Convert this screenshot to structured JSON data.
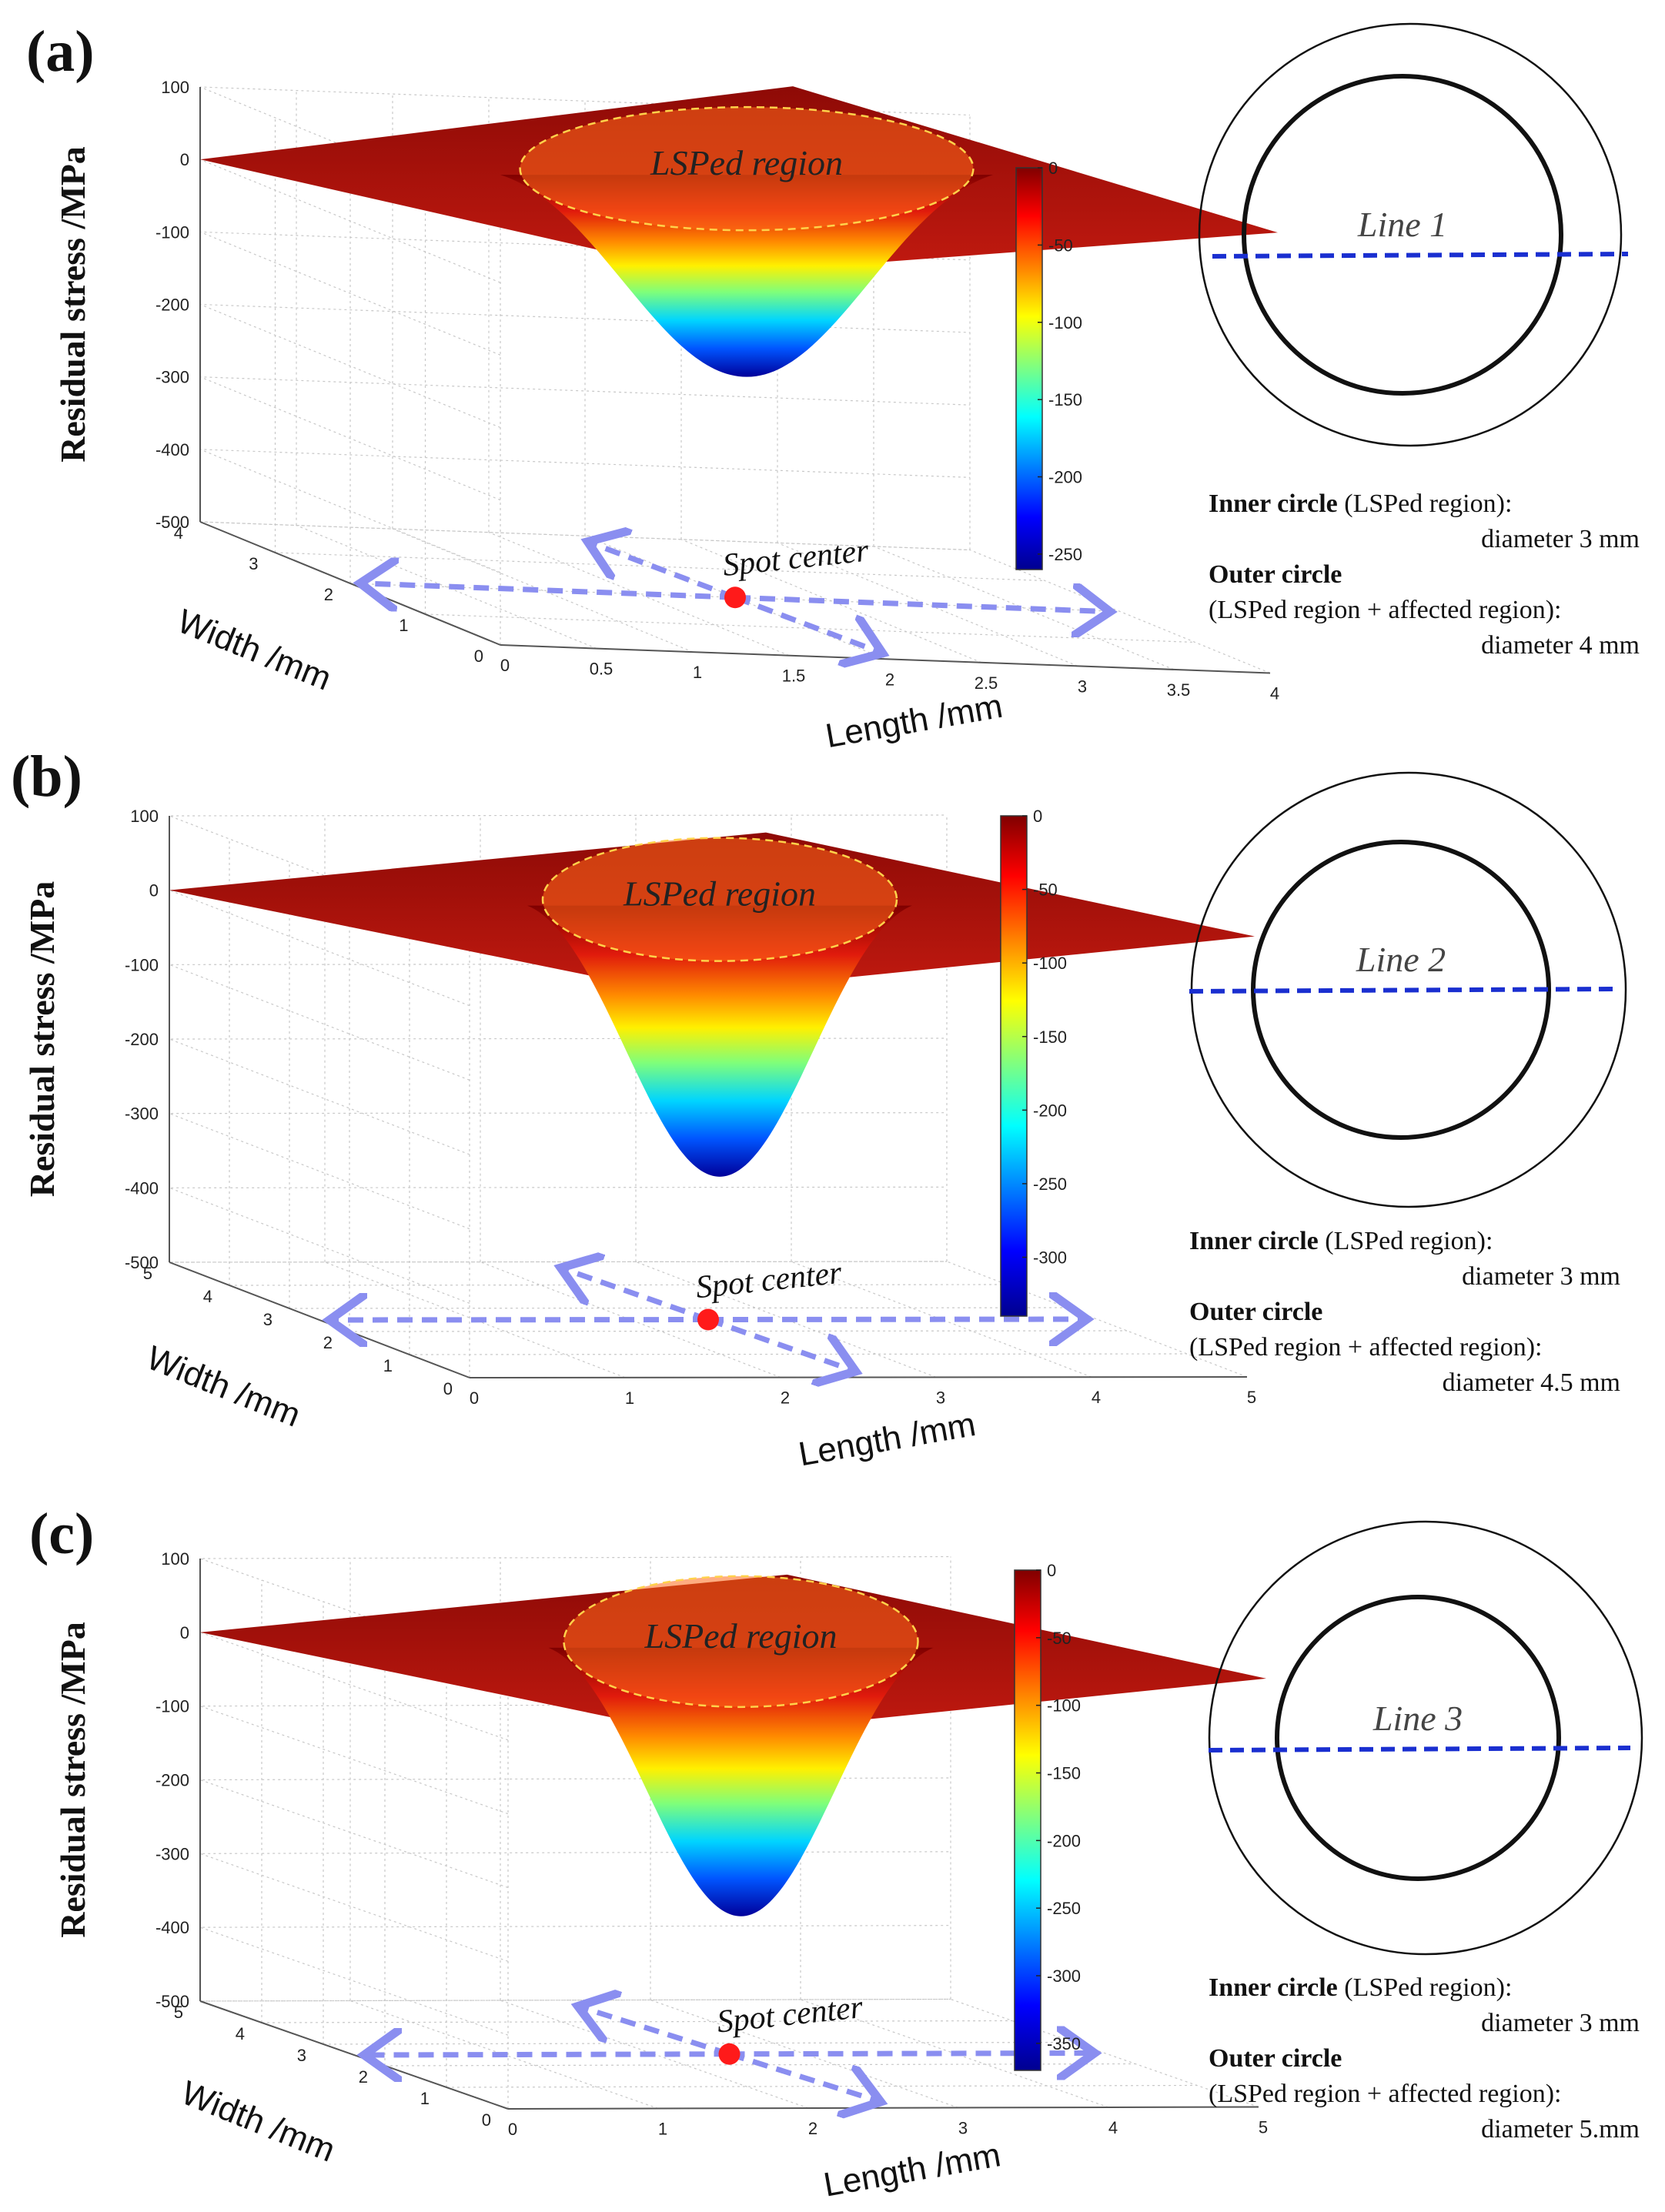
{
  "panels": [
    {
      "label": "(a)",
      "chart_data": {
        "type": "surface",
        "zlabel": "Residual stress /MPa",
        "xlabel": "Length /mm",
        "ylabel": "Width /mm",
        "x_ticks": [
          "0",
          "0.5",
          "1",
          "1.5",
          "2",
          "2.5",
          "3",
          "3.5",
          "4"
        ],
        "y_ticks": [
          "0",
          "1",
          "2",
          "3",
          "4"
        ],
        "z_ticks": [
          "100",
          "0",
          "-100",
          "-200",
          "-300",
          "-400",
          "-500"
        ],
        "xlim": [
          0,
          4
        ],
        "ylim": [
          0,
          4
        ],
        "zlim": [
          -500,
          100
        ],
        "colorbar_ticks": [
          "0",
          "-50",
          "-100",
          "-150",
          "-200",
          "-250"
        ],
        "colorbar_range": [
          -260,
          0
        ],
        "surface_min": -300,
        "region_label": "LSPed region",
        "spot_label": "Spot center"
      },
      "schematic": {
        "line_label": "Line 1"
      },
      "notes": {
        "inner_title": "Inner circle",
        "inner_desc": "(LSPed region):",
        "inner_diameter": "diameter 3 mm",
        "outer_title": "Outer circle",
        "outer_desc": "(LSPed region + affected region):",
        "outer_diameter": "diameter 4 mm"
      }
    },
    {
      "label": "(b)",
      "chart_data": {
        "type": "surface",
        "zlabel": "Residual stress /MPa",
        "xlabel": "Length /mm",
        "ylabel": "Width /mm",
        "x_ticks": [
          "0",
          "1",
          "2",
          "3",
          "4",
          "5"
        ],
        "y_ticks": [
          "0",
          "1",
          "2",
          "3",
          "4",
          "5"
        ],
        "z_ticks": [
          "100",
          "0",
          "-100",
          "-200",
          "-300",
          "-400",
          "-500"
        ],
        "xlim": [
          0,
          5
        ],
        "ylim": [
          0,
          5
        ],
        "zlim": [
          -500,
          100
        ],
        "colorbar_ticks": [
          "0",
          "-50",
          "-100",
          "-150",
          "-200",
          "-250",
          "-300"
        ],
        "colorbar_range": [
          -340,
          0
        ],
        "surface_min": -385,
        "region_label": "LSPed region",
        "spot_label": "Spot center"
      },
      "schematic": {
        "line_label": "Line 2"
      },
      "notes": {
        "inner_title": "Inner circle",
        "inner_desc": "(LSPed region):",
        "inner_diameter": "diameter 3 mm",
        "outer_title": "Outer circle",
        "outer_desc": "(LSPed region + affected region):",
        "outer_diameter": "diameter 4.5 mm"
      }
    },
    {
      "label": "(c)",
      "chart_data": {
        "type": "surface",
        "zlabel": "Residual stress /MPa",
        "xlabel": "Length /mm",
        "ylabel": "Width /mm",
        "x_ticks": [
          "0",
          "1",
          "2",
          "3",
          "4",
          "5"
        ],
        "y_ticks": [
          "0",
          "1",
          "2",
          "3",
          "4",
          "5"
        ],
        "z_ticks": [
          "100",
          "0",
          "-100",
          "-200",
          "-300",
          "-400",
          "-500"
        ],
        "xlim": [
          0,
          5
        ],
        "ylim": [
          0,
          5
        ],
        "zlim": [
          -500,
          100
        ],
        "colorbar_ticks": [
          "0",
          "-50",
          "-100",
          "-150",
          "-200",
          "-250",
          "-300",
          "-350"
        ],
        "colorbar_range": [
          -370,
          0
        ],
        "surface_min": -385,
        "region_label": "LSPed region",
        "spot_label": "Spot center"
      },
      "schematic": {
        "line_label": "Line 3"
      },
      "notes": {
        "inner_title": "Inner circle",
        "inner_desc": "(LSPed region):",
        "inner_diameter": "diameter 3 mm",
        "outer_title": "Outer circle",
        "outer_desc": "(LSPed region + affected region):",
        "outer_diameter": "diameter 5.mm"
      }
    }
  ]
}
